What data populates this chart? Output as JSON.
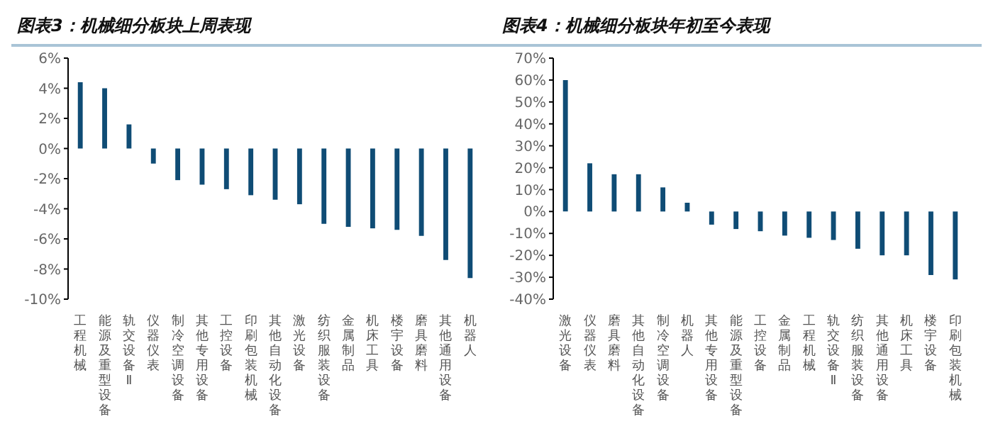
{
  "chart_data": [
    {
      "type": "bar",
      "title": "图表3：机械细分板块上周表现",
      "categories": [
        "工程机械",
        "能源及重型设备",
        "轨交设备Ⅱ",
        "仪器仪表",
        "制冷空调设备",
        "其他专用设备",
        "工控设备",
        "印刷包装机械",
        "其他自动化设备",
        "激光设备",
        "纺织服装设备",
        "金属制品",
        "机床工具",
        "楼宇设备",
        "磨具磨料",
        "其他通用设备",
        "机器人"
      ],
      "values": [
        4.4,
        4.0,
        1.6,
        -1.0,
        -2.1,
        -2.4,
        -2.7,
        -3.1,
        -3.4,
        -3.7,
        -5.0,
        -5.2,
        -5.3,
        -5.4,
        -5.8,
        -7.4,
        -8.6
      ],
      "color": "#0f4c75",
      "ylim": [
        -10,
        6
      ],
      "yticks": [
        {
          "value": -10,
          "label": "-10%"
        },
        {
          "value": -8,
          "label": "-8%"
        },
        {
          "value": -6,
          "label": "-6%"
        },
        {
          "value": -4,
          "label": "-4%"
        },
        {
          "value": -2,
          "label": "-2%"
        },
        {
          "value": 0,
          "label": "0%"
        },
        {
          "value": 2,
          "label": "2%"
        },
        {
          "value": 4,
          "label": "4%"
        },
        {
          "value": 6,
          "label": "6%"
        }
      ]
    },
    {
      "type": "bar",
      "title": "图表4：机械细分板块年初至今表现",
      "categories": [
        "激光设备",
        "仪器仪表",
        "磨具磨料",
        "其他自动化设备",
        "制冷空调设备",
        "机器人",
        "其他专用设备",
        "能源及重型设备",
        "工控设备",
        "金属制品",
        "工程机械",
        "轨交设备Ⅱ",
        "纺织服装设备",
        "其他通用设备",
        "机床工具",
        "楼宇设备",
        "印刷包装机械"
      ],
      "values": [
        60,
        22,
        17,
        17,
        11,
        4,
        -6,
        -8,
        -9,
        -11,
        -12,
        -13,
        -17,
        -20,
        -20,
        -29,
        -31
      ],
      "color": "#0f4c75",
      "ylim": [
        -40,
        70
      ],
      "yticks": [
        {
          "value": -40,
          "label": "-40%"
        },
        {
          "value": -30,
          "label": "-30%"
        },
        {
          "value": -20,
          "label": "-20%"
        },
        {
          "value": -10,
          "label": "-10%"
        },
        {
          "value": 0,
          "label": "0%"
        },
        {
          "value": 10,
          "label": "10%"
        },
        {
          "value": 20,
          "label": "20%"
        },
        {
          "value": 30,
          "label": "30%"
        },
        {
          "value": 40,
          "label": "40%"
        },
        {
          "value": 50,
          "label": "50%"
        },
        {
          "value": 60,
          "label": "60%"
        },
        {
          "value": 70,
          "label": "70%"
        }
      ]
    }
  ]
}
